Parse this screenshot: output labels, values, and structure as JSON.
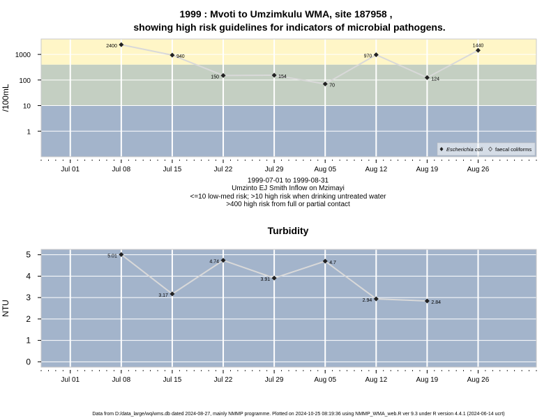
{
  "title_line1": "1999 : Mvoti to Umzimkulu WMA, site 187958 ,",
  "title_line2": "showing high risk guidelines for indicators of microbial pathogens.",
  "subtitle_lines": [
    "1999-07-01 to 1999-08-31",
    "Umzinto EJ Smith Inflow on Mzimayi",
    "<=10 low-med risk; >10 high risk when drinking untreated water",
    ">400 high risk from full or partial contact"
  ],
  "footer": "Data from D:/data_large/wq/wms.db dated 2024-08-27, mainly NMMP programme. Plotted on 2024-10-25 08:19:36 using NMMP_WMA_web.R ver 9.3 under R version 4.4.1 (2024-06-14 ucrt)",
  "colors": {
    "panel_blue": "#a3b4cb",
    "band_green": "#c4cfc2",
    "band_yellow": "#fff6c7",
    "grid": "#ffffff",
    "series_line": "#d9d9d9",
    "marker": "#222222"
  },
  "chart_data": [
    {
      "type": "line",
      "title": "",
      "xlabel": "",
      "ylabel": "/100mL",
      "yscale": "log",
      "ylim": [
        0.1,
        4000
      ],
      "yticks": [
        1,
        10,
        100,
        1000
      ],
      "ytick_labels": [
        "1",
        "10",
        "100",
        "1000"
      ],
      "risk_bands": [
        {
          "from": 0.1,
          "to": 10,
          "color": "#a3b4cb"
        },
        {
          "from": 10,
          "to": 400,
          "color": "#c4cfc2"
        },
        {
          "from": 400,
          "to": 4000,
          "color": "#fff6c7"
        }
      ],
      "xlim": [
        "1999-06-27",
        "1999-09-03"
      ],
      "xticks": [
        "1999-07-01",
        "1999-07-08",
        "1999-07-15",
        "1999-07-22",
        "1999-07-29",
        "1999-08-05",
        "1999-08-12",
        "1999-08-19",
        "1999-08-26"
      ],
      "xtick_labels": [
        "Jul 01",
        "Jul 08",
        "Jul 15",
        "Jul 22",
        "Jul 29",
        "Aug 05",
        "Aug 12",
        "Aug 19",
        "Aug 26"
      ],
      "legend_position": "bottom-right",
      "legend": [
        "Escherichia coli",
        "faecal coliforms"
      ],
      "series": [
        {
          "name": "Escherichia coli",
          "x": [
            "1999-07-08",
            "1999-07-15",
            "1999-07-22",
            "1999-07-29",
            "1999-08-05",
            "1999-08-12",
            "1999-08-19",
            "1999-08-26"
          ],
          "y": [
            2400,
            940,
            150,
            154,
            70,
            970,
            124,
            1440
          ],
          "labels": [
            "2400",
            "940",
            "150",
            "154",
            "70",
            "970",
            "124",
            "1440"
          ],
          "label_side": [
            "left",
            "right",
            "left",
            "right",
            "right",
            "left",
            "right",
            "top"
          ]
        }
      ]
    },
    {
      "type": "line",
      "title": "Turbidity",
      "xlabel": "",
      "ylabel": "NTU",
      "ylim": [
        -0.25,
        5.25
      ],
      "yticks": [
        0,
        1,
        2,
        3,
        4,
        5
      ],
      "ytick_labels": [
        "0",
        "1",
        "2",
        "3",
        "4",
        "5"
      ],
      "xlim": [
        "1999-06-27",
        "1999-09-03"
      ],
      "xticks": [
        "1999-07-01",
        "1999-07-08",
        "1999-07-15",
        "1999-07-22",
        "1999-07-29",
        "1999-08-05",
        "1999-08-12",
        "1999-08-19",
        "1999-08-26"
      ],
      "xtick_labels": [
        "Jul 01",
        "Jul 08",
        "Jul 15",
        "Jul 22",
        "Jul 29",
        "Aug 05",
        "Aug 12",
        "Aug 19",
        "Aug 26"
      ],
      "series": [
        {
          "name": "",
          "x": [
            "1999-07-08",
            "1999-07-15",
            "1999-07-22",
            "1999-07-29",
            "1999-08-05",
            "1999-08-12",
            "1999-08-19"
          ],
          "y": [
            5.01,
            3.17,
            4.74,
            3.91,
            4.7,
            2.94,
            2.84
          ],
          "labels": [
            "5.01",
            "3.17",
            "4.74",
            "3.91",
            "4.7",
            "2.94",
            "2.84"
          ],
          "label_side": [
            "left",
            "left",
            "left",
            "left",
            "right",
            "left",
            "right"
          ]
        }
      ]
    }
  ]
}
